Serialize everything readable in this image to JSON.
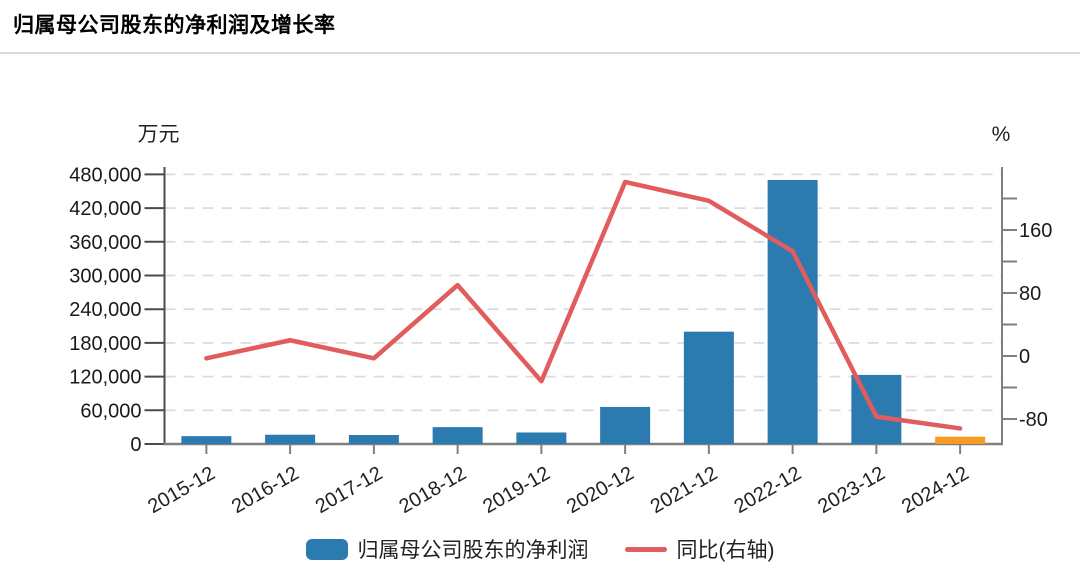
{
  "title": "归属母公司股东的净利润及增长率",
  "legend": {
    "bar_label": "归属母公司股东的净利润",
    "line_label": "同比(右轴)"
  },
  "chart_data": {
    "type": "combo-bar-line",
    "title": "归属母公司股东的净利润及增长率",
    "categories": [
      "2015-12",
      "2016-12",
      "2017-12",
      "2018-12",
      "2019-12",
      "2020-12",
      "2021-12",
      "2022-12",
      "2023-12",
      "2024-12"
    ],
    "series": [
      {
        "name": "归属母公司股东的净利润",
        "type": "bar",
        "y_axis": "left",
        "unit": "万元",
        "values": [
          14000,
          16500,
          16000,
          30000,
          20500,
          66000,
          200000,
          470000,
          123000,
          13000
        ]
      },
      {
        "name": "同比(右轴)",
        "type": "line",
        "y_axis": "right",
        "unit": "%",
        "values": [
          -3,
          20,
          -3,
          90,
          -32,
          221,
          197,
          133,
          -77,
          -92
        ]
      }
    ],
    "left_axis": {
      "unit_label": "万元",
      "tick_labels": [
        "0",
        "60,000",
        "120,000",
        "180,000",
        "240,000",
        "300,000",
        "360,000",
        "420,000",
        "480,000"
      ],
      "tick_values": [
        0,
        60000,
        120000,
        180000,
        240000,
        300000,
        360000,
        420000,
        480000
      ],
      "range": [
        0,
        493000
      ]
    },
    "right_axis": {
      "unit_label": "%",
      "tick_labels": [
        "-80",
        "0",
        "80",
        "160"
      ],
      "tick_values": [
        -80,
        0,
        80,
        160
      ],
      "minor_tick_values": [
        -40,
        40,
        120,
        200
      ],
      "range": [
        -113,
        239
      ]
    },
    "grid": "horizontal-dashed",
    "legend_position": "bottom-center",
    "x_label_rotation_deg": -30,
    "colors": {
      "bar": "#2b7ab0",
      "bar_last": "#f59a23",
      "line": "#e15d5d",
      "grid": "#dcdcdc",
      "axis_left": "#4a4a4a",
      "axis_right": "#7f7f7f",
      "axis_bottom": "#7f7f7f",
      "tick_text": "#1a1a1a"
    }
  }
}
